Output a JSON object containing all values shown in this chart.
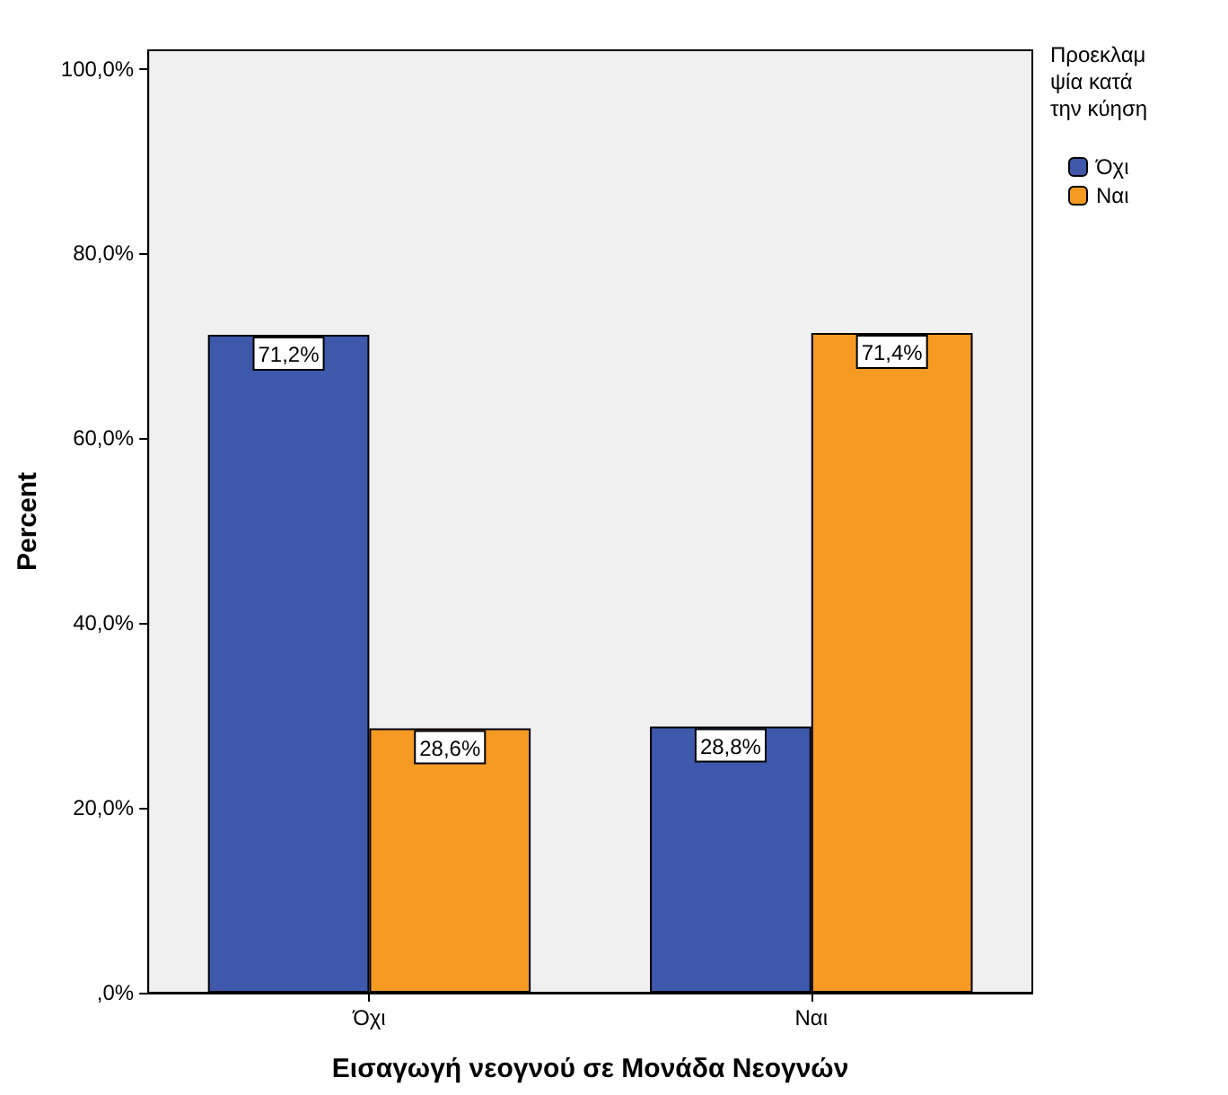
{
  "chart_data": {
    "type": "bar",
    "xlabel": "Εισαγωγή νεογνού σε Μονάδα Νεογνών",
    "ylabel": "Percent",
    "legend_title": "Προεκλαμψία κατά την κύηση",
    "categories": [
      "Όχι",
      "Ναι"
    ],
    "series": [
      {
        "name": "Όχι",
        "color": "#3e58ac",
        "values": [
          71.2,
          28.8
        ],
        "value_labels": [
          "71,2%",
          "28,8%"
        ]
      },
      {
        "name": "Ναι",
        "color": "#f59a23",
        "values": [
          28.6,
          71.4
        ],
        "value_labels": [
          "28,6%",
          "71,4%"
        ]
      }
    ],
    "ylim": [
      0,
      102
    ],
    "yticks": [
      {
        "value": 0,
        "label": ",0%"
      },
      {
        "value": 20,
        "label": "20,0%"
      },
      {
        "value": 40,
        "label": "40,0%"
      },
      {
        "value": 60,
        "label": "60,0%"
      },
      {
        "value": 80,
        "label": "80,0%"
      },
      {
        "value": 100,
        "label": "100,0%"
      }
    ],
    "grid": false,
    "legend": "right"
  }
}
